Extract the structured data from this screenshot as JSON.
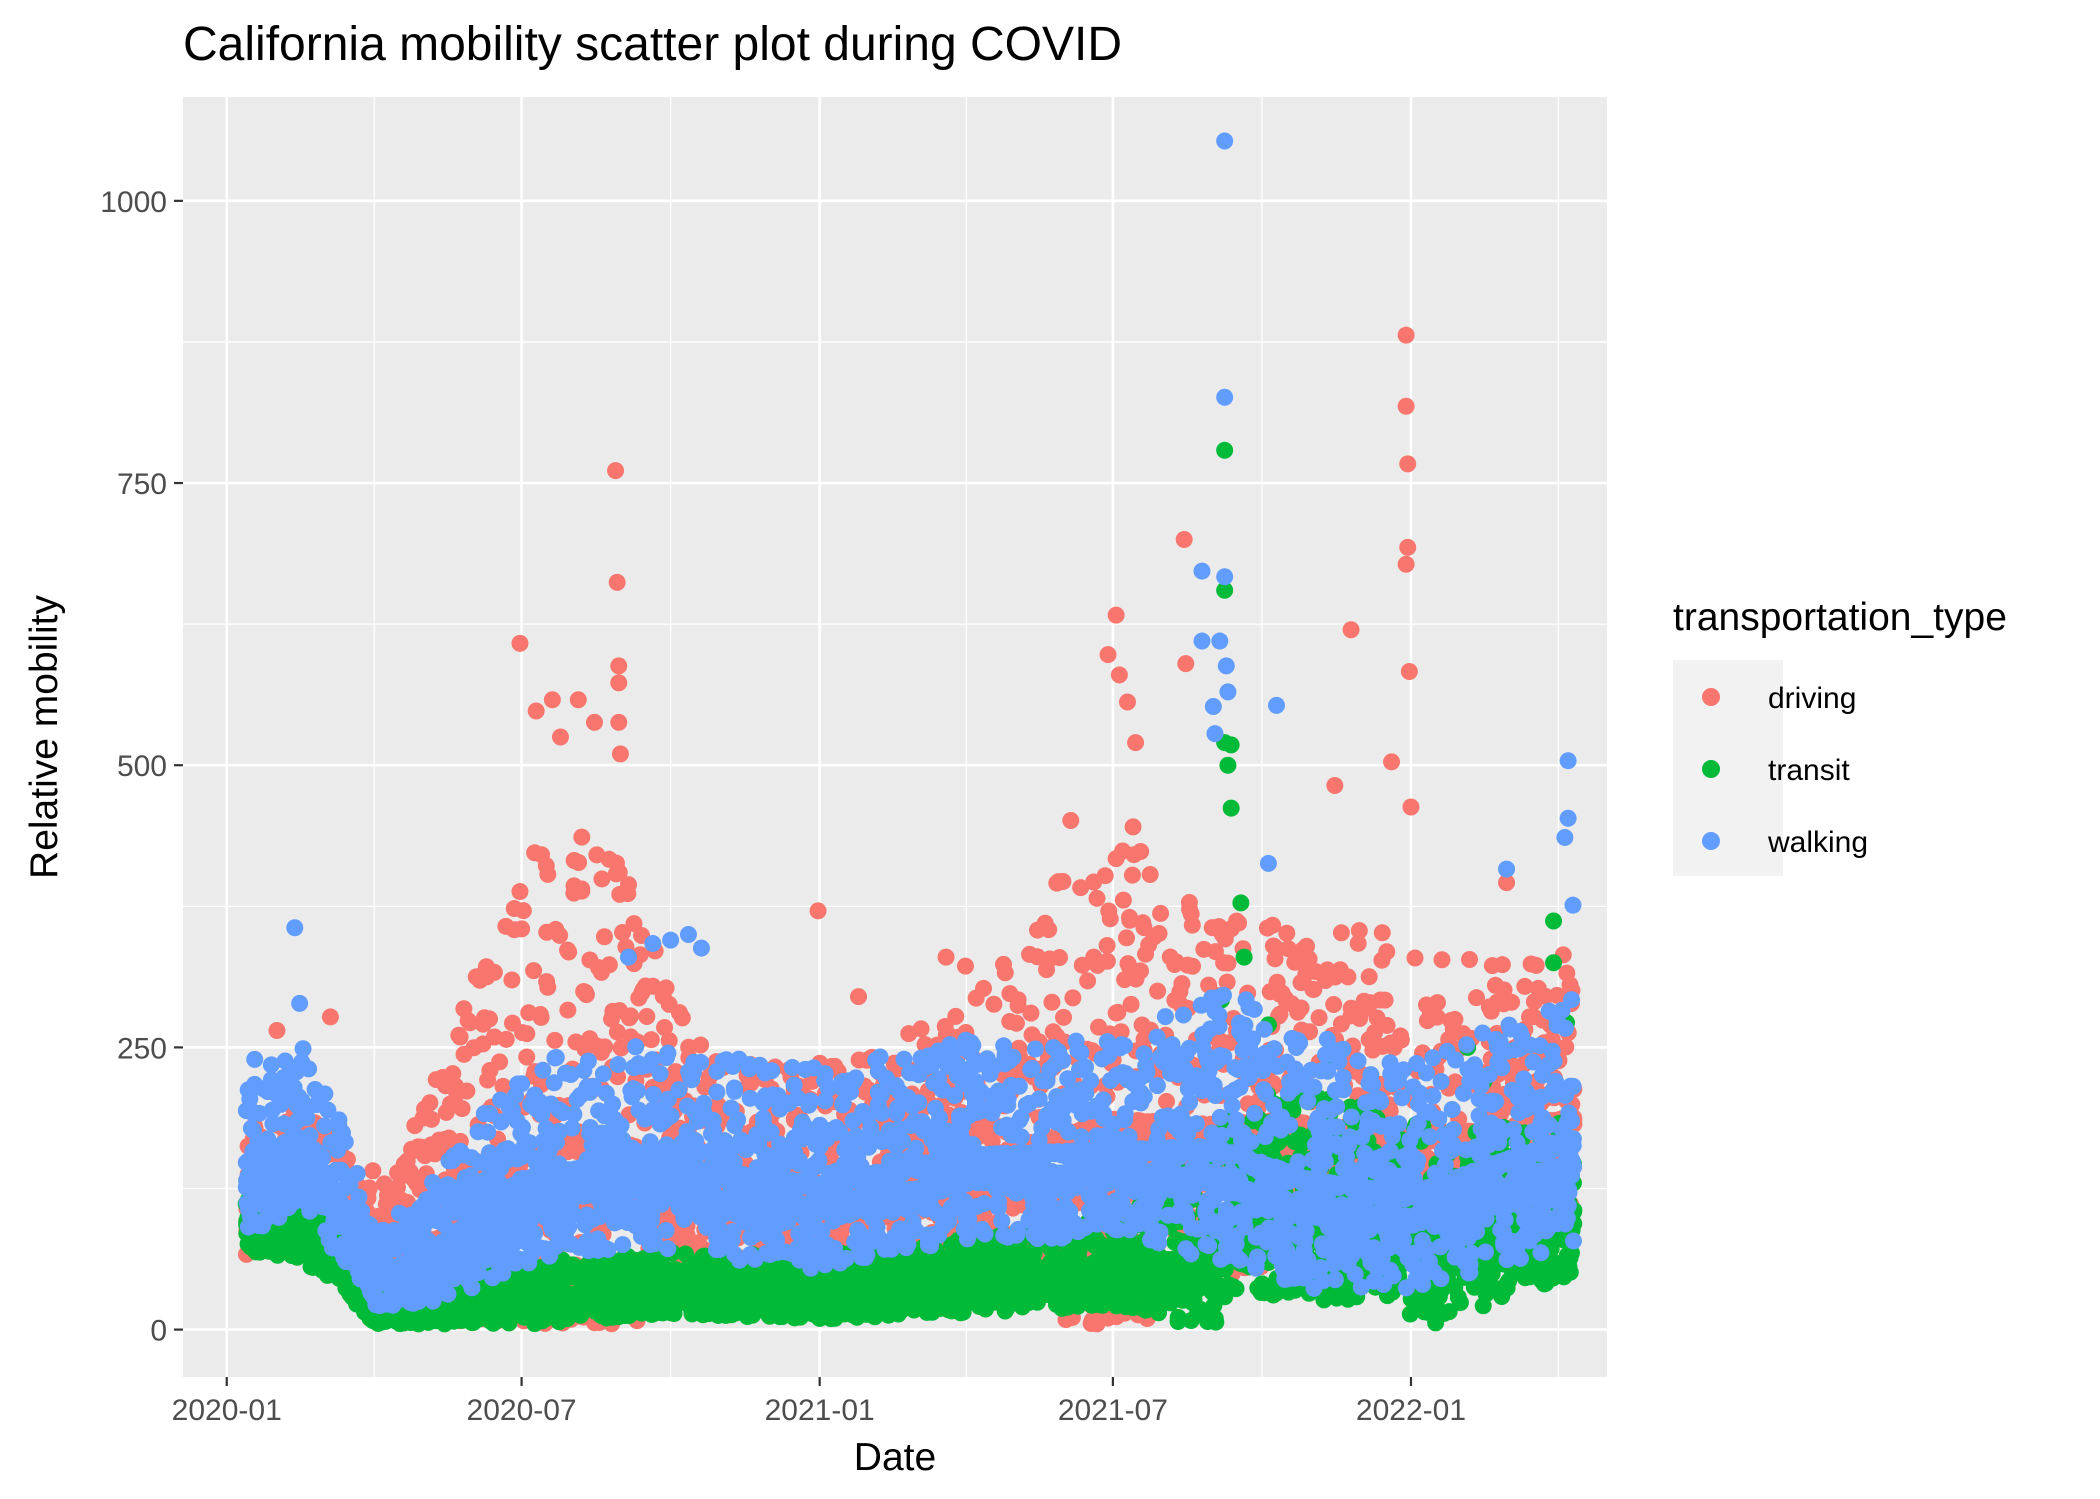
{
  "chart_data": {
    "type": "scatter",
    "title": "California mobility scatter plot during COVID",
    "xlabel": "Date",
    "ylabel": "Relative mobility",
    "x_ticks": [
      "2020-01-01",
      "2020-07-01",
      "2021-01-01",
      "2021-07-01",
      "2022-01-01"
    ],
    "x_tick_labels": [
      "2020-01",
      "2020-07",
      "2021-01",
      "2021-07",
      "2022-01"
    ],
    "xlim": [
      "2019-12-05",
      "2022-05-02"
    ],
    "y_ticks": [
      0,
      250,
      500,
      750,
      1000
    ],
    "y_tick_labels": [
      "0",
      "250",
      "500",
      "750",
      "1000"
    ],
    "ylim": [
      -42,
      1092
    ],
    "grid": true,
    "legend": {
      "title": "transportation_type",
      "position": "right"
    },
    "series": [
      {
        "name": "driving",
        "color": "#F8766D",
        "trend": [
          [
            "2020-01-13",
            100
          ],
          [
            "2020-02-15",
            125
          ],
          [
            "2020-03-10",
            105
          ],
          [
            "2020-04-10",
            70
          ],
          [
            "2020-05-15",
            100
          ],
          [
            "2020-06-20",
            130
          ],
          [
            "2020-08-01",
            150
          ],
          [
            "2020-09-15",
            140
          ],
          [
            "2020-10-15",
            130
          ],
          [
            "2020-12-01",
            110
          ],
          [
            "2021-01-15",
            110
          ],
          [
            "2021-03-01",
            125
          ],
          [
            "2021-05-01",
            145
          ],
          [
            "2021-07-01",
            160
          ],
          [
            "2021-09-01",
            165
          ],
          [
            "2021-10-15",
            170
          ],
          [
            "2021-12-01",
            160
          ],
          [
            "2022-02-01",
            160
          ],
          [
            "2022-04-11",
            175
          ]
        ],
        "spread": [
          [
            "2020-01-13",
            60
          ],
          [
            "2020-03-10",
            50
          ],
          [
            "2020-04-10",
            40
          ],
          [
            "2020-07-01",
            200
          ],
          [
            "2020-08-15",
            230
          ],
          [
            "2020-10-15",
            90
          ],
          [
            "2021-01-15",
            90
          ],
          [
            "2021-04-15",
            120
          ],
          [
            "2021-07-01",
            220
          ],
          [
            "2021-09-01",
            140
          ],
          [
            "2021-12-01",
            140
          ],
          [
            "2022-04-11",
            110
          ]
        ],
        "peaks": [
          [
            "2020-06-30",
            608
          ],
          [
            "2020-07-10",
            548
          ],
          [
            "2020-07-20",
            558
          ],
          [
            "2020-07-25",
            525
          ],
          [
            "2020-08-05",
            558
          ],
          [
            "2020-08-15",
            538
          ],
          [
            "2020-08-28",
            761
          ],
          [
            "2020-08-29",
            662
          ],
          [
            "2020-08-30",
            588
          ],
          [
            "2020-08-30",
            573
          ],
          [
            "2020-08-30",
            538
          ],
          [
            "2020-08-31",
            510
          ],
          [
            "2020-02-01",
            265
          ],
          [
            "2020-03-05",
            277
          ],
          [
            "2020-12-31",
            371
          ],
          [
            "2021-01-25",
            295
          ],
          [
            "2021-03-20",
            330
          ],
          [
            "2021-04-01",
            322
          ],
          [
            "2021-06-05",
            451
          ],
          [
            "2021-06-28",
            598
          ],
          [
            "2021-07-03",
            633
          ],
          [
            "2021-07-05",
            580
          ],
          [
            "2021-07-10",
            556
          ],
          [
            "2021-07-15",
            520
          ],
          [
            "2021-08-14",
            700
          ],
          [
            "2021-08-15",
            590
          ],
          [
            "2021-11-15",
            482
          ],
          [
            "2021-11-25",
            620
          ],
          [
            "2021-12-20",
            503
          ],
          [
            "2021-12-29",
            881
          ],
          [
            "2021-12-29",
            818
          ],
          [
            "2021-12-30",
            767
          ],
          [
            "2021-12-30",
            693
          ],
          [
            "2021-12-29",
            678
          ],
          [
            "2021-12-31",
            583
          ],
          [
            "2022-01-01",
            463
          ],
          [
            "2022-03-01",
            396
          ],
          [
            "2022-04-05",
            332
          ]
        ]
      },
      {
        "name": "transit",
        "color": "#00BA38",
        "trend": [
          [
            "2020-01-13",
            90
          ],
          [
            "2020-02-15",
            82
          ],
          [
            "2020-03-10",
            60
          ],
          [
            "2020-04-01",
            15
          ],
          [
            "2020-05-15",
            15
          ],
          [
            "2020-07-01",
            25
          ],
          [
            "2020-10-01",
            35
          ],
          [
            "2021-01-01",
            30
          ],
          [
            "2021-04-01",
            40
          ],
          [
            "2021-07-01",
            50
          ],
          [
            "2021-09-01",
            60
          ],
          [
            "2021-09-15",
            100
          ],
          [
            "2021-12-01",
            90
          ],
          [
            "2022-01-15",
            70
          ],
          [
            "2022-04-11",
            100
          ]
        ],
        "spread": [
          [
            "2020-01-13",
            25
          ],
          [
            "2020-03-10",
            25
          ],
          [
            "2020-04-01",
            12
          ],
          [
            "2020-07-01",
            25
          ],
          [
            "2021-01-01",
            25
          ],
          [
            "2021-07-01",
            35
          ],
          [
            "2021-09-15",
            80
          ],
          [
            "2022-01-01",
            80
          ],
          [
            "2022-04-11",
            60
          ]
        ],
        "peaks": [
          [
            "2021-09-08",
            779
          ],
          [
            "2021-09-08",
            655
          ],
          [
            "2021-09-08",
            520
          ],
          [
            "2021-09-10",
            500
          ],
          [
            "2021-09-12",
            518
          ],
          [
            "2021-09-12",
            462
          ],
          [
            "2021-09-18",
            378
          ],
          [
            "2021-09-06",
            292
          ],
          [
            "2021-09-20",
            330
          ],
          [
            "2021-10-05",
            270
          ],
          [
            "2022-03-30",
            362
          ],
          [
            "2022-03-30",
            325
          ],
          [
            "2022-04-07",
            272
          ],
          [
            "2022-02-05",
            250
          ],
          [
            "2022-02-15",
            220
          ],
          [
            "2021-11-10",
            230
          ]
        ]
      },
      {
        "name": "walking",
        "color": "#619CFF",
        "trend": [
          [
            "2020-01-13",
            140
          ],
          [
            "2020-02-15",
            165
          ],
          [
            "2020-03-10",
            110
          ],
          [
            "2020-04-01",
            45
          ],
          [
            "2020-05-01",
            60
          ],
          [
            "2020-06-01",
            90
          ],
          [
            "2020-07-01",
            125
          ],
          [
            "2020-09-01",
            140
          ],
          [
            "2020-11-01",
            130
          ],
          [
            "2021-01-01",
            120
          ],
          [
            "2021-04-01",
            145
          ],
          [
            "2021-07-01",
            150
          ],
          [
            "2021-09-01",
            150
          ],
          [
            "2021-11-01",
            120
          ],
          [
            "2022-01-01",
            110
          ],
          [
            "2022-04-11",
            160
          ]
        ],
        "spread": [
          [
            "2020-01-13",
            70
          ],
          [
            "2020-03-10",
            60
          ],
          [
            "2020-04-01",
            30
          ],
          [
            "2020-07-01",
            80
          ],
          [
            "2020-10-01",
            80
          ],
          [
            "2021-01-01",
            80
          ],
          [
            "2021-07-01",
            80
          ],
          [
            "2021-09-15",
            110
          ],
          [
            "2022-01-01",
            90
          ],
          [
            "2022-04-11",
            100
          ]
        ],
        "peaks": [
          [
            "2020-02-12",
            356
          ],
          [
            "2020-02-15",
            289
          ],
          [
            "2020-09-05",
            330
          ],
          [
            "2020-09-20",
            342
          ],
          [
            "2020-10-01",
            345
          ],
          [
            "2020-10-12",
            350
          ],
          [
            "2020-10-20",
            338
          ],
          [
            "2021-08-25",
            672
          ],
          [
            "2021-09-05",
            610
          ],
          [
            "2021-09-08",
            1053
          ],
          [
            "2021-09-08",
            826
          ],
          [
            "2021-09-08",
            667
          ],
          [
            "2021-09-09",
            588
          ],
          [
            "2021-09-10",
            565
          ],
          [
            "2021-09-01",
            552
          ],
          [
            "2021-09-02",
            528
          ],
          [
            "2021-10-10",
            553
          ],
          [
            "2021-10-05",
            413
          ],
          [
            "2021-08-25",
            610
          ],
          [
            "2022-03-01",
            408
          ],
          [
            "2022-04-08",
            504
          ],
          [
            "2022-04-08",
            453
          ],
          [
            "2022-04-06",
            436
          ],
          [
            "2022-04-11",
            376
          ]
        ]
      }
    ]
  }
}
